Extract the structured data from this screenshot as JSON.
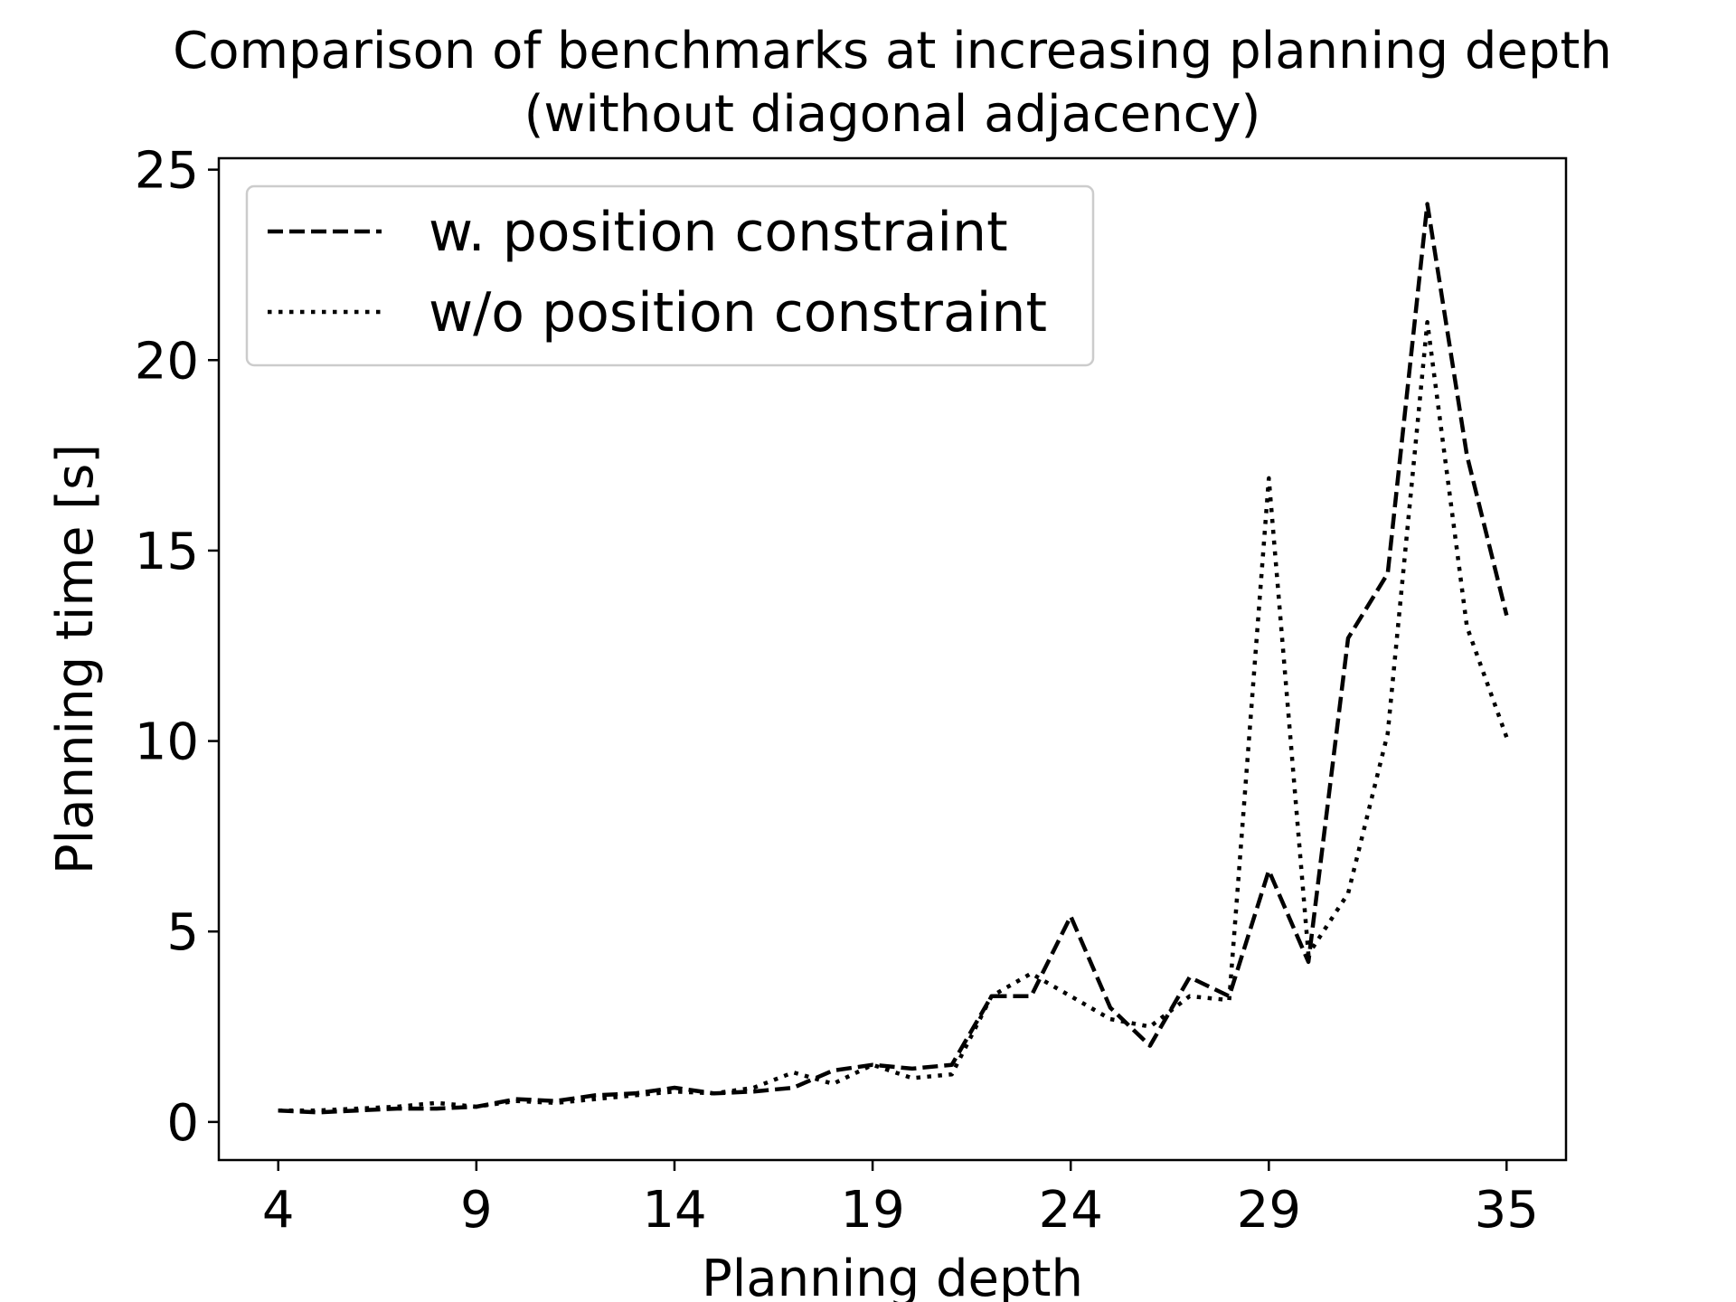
{
  "chart_data": {
    "type": "line",
    "title": "Comparison of benchmarks at increasing planning depth",
    "subtitle": "(without diagonal adjacency)",
    "xlabel": "Planning depth",
    "ylabel": "Planning time [s]",
    "xlim": [
      2.5,
      36.5
    ],
    "ylim": [
      -1,
      25.3
    ],
    "xticks": [
      4,
      9,
      14,
      19,
      24,
      29,
      35
    ],
    "yticks": [
      0,
      5,
      10,
      15,
      20,
      25
    ],
    "grid": false,
    "legend_position": "top-left",
    "x": [
      4,
      5,
      6,
      7,
      8,
      9,
      10,
      11,
      12,
      13,
      14,
      15,
      16,
      17,
      18,
      19,
      20,
      21,
      22,
      23,
      24,
      25,
      26,
      27,
      28,
      29,
      30,
      31,
      32,
      33,
      34,
      35
    ],
    "series": [
      {
        "name": "w. position constraint",
        "style": "dashed",
        "color": "#000000",
        "values": [
          0.3,
          0.25,
          0.3,
          0.35,
          0.35,
          0.4,
          0.6,
          0.55,
          0.7,
          0.75,
          0.9,
          0.75,
          0.8,
          0.9,
          1.35,
          1.5,
          1.4,
          1.5,
          3.3,
          3.3,
          5.4,
          3.0,
          2.0,
          3.8,
          3.3,
          6.6,
          4.2,
          12.7,
          14.4,
          24.1,
          17.5,
          13.3
        ]
      },
      {
        "name": "w/o position constraint",
        "style": "dotted",
        "color": "#000000",
        "values": [
          0.3,
          0.3,
          0.35,
          0.4,
          0.5,
          0.4,
          0.55,
          0.5,
          0.6,
          0.7,
          0.8,
          0.75,
          0.9,
          1.3,
          1.0,
          1.5,
          1.15,
          1.25,
          3.3,
          3.9,
          3.3,
          2.7,
          2.5,
          3.3,
          3.2,
          16.9,
          4.4,
          6.0,
          10.2,
          21.0,
          13.0,
          10.1
        ]
      }
    ]
  }
}
